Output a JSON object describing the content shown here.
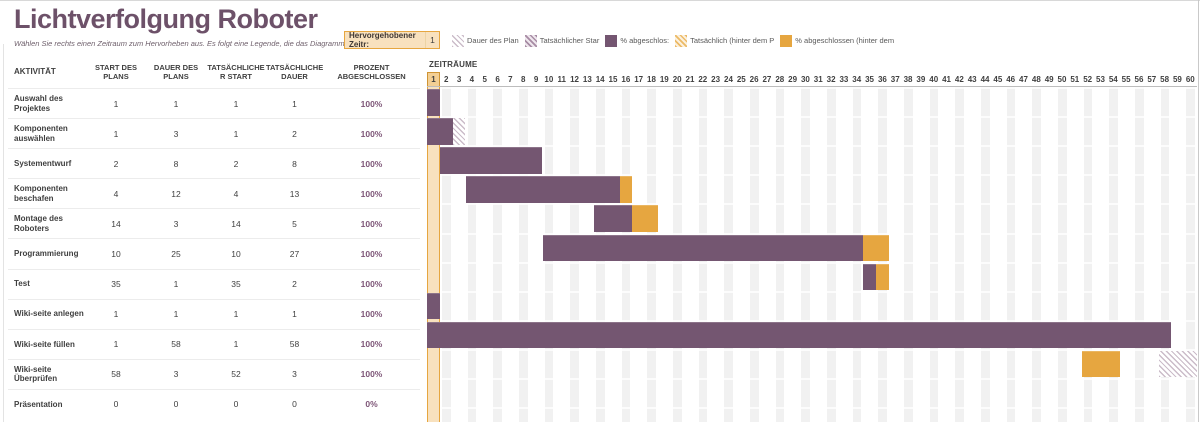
{
  "title": "Lichtverfolgung Roboter",
  "subtitle": "Wählen Sie rechts einen Zeitraum zum Hervorheben aus. Es folgt eine Legende, die das Diagramm beschreibt.",
  "highlight": {
    "label": "Hervorgehobener Zeitr:",
    "value": "1"
  },
  "legend": [
    {
      "label": "Dauer des Plan",
      "style": "plan"
    },
    {
      "label": "Tatsächlicher Star",
      "style": "actual"
    },
    {
      "label": "% abgeschlos:",
      "style": "complete"
    },
    {
      "label": "Tatsächlich (hinter dem P",
      "style": "behindhatch"
    },
    {
      "label": "% abgeschlossen (hinter dem",
      "style": "behind"
    }
  ],
  "table": {
    "headers": [
      "AKTIVITÄT",
      "START DES PLANS",
      "DAUER DES PLANS",
      "TATSÄCHLICHE R START",
      "TATSÄCHLICHE DAUER",
      "PROZENT ABGESCHLOSSEN"
    ]
  },
  "timeline": {
    "label": "ZEITRÄUME",
    "periods": 60,
    "highlighted_period": 1
  },
  "chart_data": {
    "type": "gantt",
    "x_axis": {
      "label": "ZEITRÄUME",
      "min": 1,
      "max": 60
    },
    "highlighted_period": 1,
    "rows": [
      {
        "activity": "Auswahl des Projektes",
        "plan_start": 1,
        "plan_duration": 1,
        "actual_start": 1,
        "actual_duration": 1,
        "percent": "100%",
        "bars": [
          {
            "kind": "complete",
            "start": 1,
            "end": 1
          }
        ]
      },
      {
        "activity": "Komponenten auswählen",
        "plan_start": 1,
        "plan_duration": 3,
        "actual_start": 1,
        "actual_duration": 2,
        "percent": "100%",
        "bars": [
          {
            "kind": "complete",
            "start": 1,
            "end": 2
          },
          {
            "kind": "plan",
            "start": 3,
            "end": 3
          }
        ]
      },
      {
        "activity": "Systementwurf",
        "plan_start": 2,
        "plan_duration": 8,
        "actual_start": 2,
        "actual_duration": 8,
        "percent": "100%",
        "bars": [
          {
            "kind": "complete",
            "start": 2,
            "end": 9
          }
        ]
      },
      {
        "activity": "Komponenten beschafen",
        "plan_start": 4,
        "plan_duration": 12,
        "actual_start": 4,
        "actual_duration": 13,
        "percent": "100%",
        "bars": [
          {
            "kind": "complete",
            "start": 4,
            "end": 15
          },
          {
            "kind": "complete-behind",
            "start": 16,
            "end": 16
          }
        ]
      },
      {
        "activity": "Montage des Roboters",
        "plan_start": 14,
        "plan_duration": 3,
        "actual_start": 14,
        "actual_duration": 5,
        "percent": "100%",
        "bars": [
          {
            "kind": "complete",
            "start": 14,
            "end": 16
          },
          {
            "kind": "complete-behind",
            "start": 17,
            "end": 18
          }
        ]
      },
      {
        "activity": "Programmierung",
        "plan_start": 10,
        "plan_duration": 25,
        "actual_start": 10,
        "actual_duration": 27,
        "percent": "100%",
        "bars": [
          {
            "kind": "complete",
            "start": 10,
            "end": 34
          },
          {
            "kind": "complete-behind",
            "start": 35,
            "end": 36
          }
        ]
      },
      {
        "activity": "Test",
        "plan_start": 35,
        "plan_duration": 1,
        "actual_start": 35,
        "actual_duration": 2,
        "percent": "100%",
        "bars": [
          {
            "kind": "complete",
            "start": 35,
            "end": 35
          },
          {
            "kind": "complete-behind",
            "start": 36,
            "end": 36
          }
        ]
      },
      {
        "activity": "Wiki-seite anlegen",
        "plan_start": 1,
        "plan_duration": 1,
        "actual_start": 1,
        "actual_duration": 1,
        "percent": "100%",
        "bars": [
          {
            "kind": "complete",
            "start": 1,
            "end": 1
          }
        ]
      },
      {
        "activity": "Wiki-seite füllen",
        "plan_start": 1,
        "plan_duration": 58,
        "actual_start": 1,
        "actual_duration": 58,
        "percent": "100%",
        "bars": [
          {
            "kind": "complete",
            "start": 1,
            "end": 58
          }
        ]
      },
      {
        "activity": "Wiki-seite Überprüfen",
        "plan_start": 58,
        "plan_duration": 3,
        "actual_start": 52,
        "actual_duration": 3,
        "percent": "100%",
        "bars": [
          {
            "kind": "complete-behind",
            "start": 52,
            "end": 54
          },
          {
            "kind": "plan",
            "start": 58,
            "end": 60
          }
        ]
      },
      {
        "activity": "Präsentation",
        "plan_start": 0,
        "plan_duration": 0,
        "actual_start": 0,
        "actual_duration": 0,
        "percent": "0%",
        "bars": []
      }
    ]
  },
  "colors": {
    "accent_purple": "#6d5169",
    "bar_complete": "#745671",
    "bar_behind": "#e6a640",
    "plan_hatch": "#cbbcc9",
    "actual_hatch": "#a78ca4",
    "highlight_fill": "#f8e1be",
    "highlight_border": "#e6a640",
    "highlight_cell": "#f3cf94",
    "stripe": "#f1f1f1",
    "percent_text": "#7d5577",
    "text_dark": "#3f3f3f"
  }
}
